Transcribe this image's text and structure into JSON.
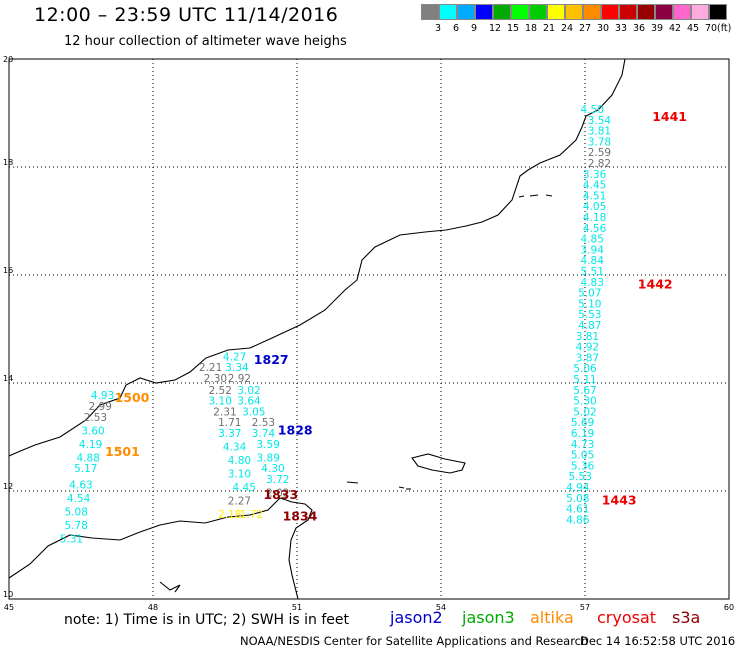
{
  "header": {
    "title": "12:00 – 23:59 UTC 11/14/2016",
    "subtitle": "12 hour collection of altimeter wave heighs"
  },
  "color_scale": {
    "unit": "(ft)",
    "swatches": [
      "#808080",
      "#00ffff",
      "#00aaff",
      "#0000ff",
      "#00aa00",
      "#00ff00",
      "#00cc00",
      "#ffff00",
      "#ffc000",
      "#ff8c00",
      "#ff0000",
      "#cc0000",
      "#990000",
      "#8b0040",
      "#ff66cc",
      "#ffaadd",
      "#000000"
    ],
    "labels": [
      "3",
      "6",
      "9",
      "12",
      "15",
      "18",
      "21",
      "24",
      "27",
      "30",
      "33",
      "36",
      "39",
      "42",
      "45",
      "70"
    ]
  },
  "axes": {
    "lon_labels": [
      "45",
      "48",
      "51",
      "54",
      "57",
      "60"
    ],
    "lat_labels": [
      "20",
      "18",
      "16",
      "14",
      "12",
      "10"
    ],
    "lon_range": [
      45,
      60
    ],
    "lat_range": [
      10,
      20
    ],
    "grid": true
  },
  "colors": {
    "cyan": "#00e8e8",
    "gray": "#707070",
    "yellow": "#ffee00",
    "blue": "#0000cc",
    "green": "#00aa00",
    "orange": "#ff8c00",
    "red": "#ee0000",
    "darkred": "#8b0000"
  },
  "tracks": [
    {
      "color": "cyan",
      "points": [
        [
          57.15,
          19.0,
          "4.50"
        ],
        [
          57.3,
          18.8,
          "3.54"
        ],
        [
          57.3,
          18.6,
          "3.81"
        ],
        [
          57.3,
          18.4,
          "3.78"
        ]
      ]
    },
    {
      "color": "gray",
      "points": [
        [
          57.3,
          18.2,
          "2.59"
        ],
        [
          57.3,
          18.0,
          "2.82"
        ]
      ]
    },
    {
      "color": "cyan",
      "points": [
        [
          57.2,
          17.8,
          "3.36"
        ],
        [
          57.2,
          17.6,
          "4.45"
        ],
        [
          57.2,
          17.4,
          "4.51"
        ],
        [
          57.2,
          17.2,
          "4.05"
        ],
        [
          57.2,
          17.0,
          "4.18"
        ],
        [
          57.2,
          16.8,
          "4.56"
        ],
        [
          57.15,
          16.6,
          "4.85"
        ],
        [
          57.15,
          16.4,
          "3.94"
        ],
        [
          57.15,
          16.2,
          "4.84"
        ],
        [
          57.15,
          16.0,
          "5.51"
        ],
        [
          57.15,
          15.8,
          "4.83"
        ],
        [
          57.1,
          15.6,
          "5.07"
        ],
        [
          57.1,
          15.4,
          "5.10"
        ],
        [
          57.1,
          15.2,
          "5.53"
        ],
        [
          57.1,
          15.0,
          "4.87"
        ],
        [
          57.05,
          14.8,
          "3.81"
        ],
        [
          57.05,
          14.6,
          "4.92"
        ],
        [
          57.05,
          14.4,
          "3.87"
        ],
        [
          57.0,
          14.2,
          "5.06"
        ],
        [
          57.0,
          14.0,
          "5.11"
        ],
        [
          57.0,
          13.8,
          "5.67"
        ],
        [
          57.0,
          13.6,
          "5.30"
        ],
        [
          57.0,
          13.4,
          "5.02"
        ],
        [
          56.95,
          13.2,
          "5.69"
        ],
        [
          56.95,
          13.0,
          "6.19"
        ],
        [
          56.95,
          12.8,
          "4.73"
        ],
        [
          56.95,
          12.6,
          "5.05"
        ],
        [
          56.95,
          12.4,
          "5.36"
        ],
        [
          56.9,
          12.2,
          "5.53"
        ],
        [
          56.85,
          12.0,
          "4.94"
        ],
        [
          56.85,
          11.8,
          "5.08"
        ],
        [
          56.85,
          11.6,
          "4.61"
        ],
        [
          56.85,
          11.4,
          "4.86"
        ]
      ]
    },
    {
      "color": "cyan",
      "points": [
        [
          46.95,
          13.7,
          "4.93"
        ]
      ]
    },
    {
      "color": "gray",
      "points": [
        [
          46.9,
          13.5,
          "2.99"
        ],
        [
          46.8,
          13.3,
          "2.53"
        ]
      ]
    },
    {
      "color": "cyan",
      "points": [
        [
          46.75,
          13.05,
          "3.60"
        ],
        [
          46.7,
          12.8,
          "4.19"
        ],
        [
          46.65,
          12.55,
          "4.88"
        ],
        [
          46.6,
          12.35,
          "5.17"
        ],
        [
          46.5,
          12.05,
          "4.63"
        ],
        [
          46.45,
          11.8,
          "4.54"
        ],
        [
          46.4,
          11.55,
          "5.08"
        ],
        [
          46.4,
          11.3,
          "5.78"
        ],
        [
          46.3,
          11.05,
          "5.31"
        ]
      ]
    },
    {
      "color": "cyan",
      "points": [
        [
          49.7,
          14.42,
          "4.27"
        ],
        [
          49.75,
          14.22,
          "3.34"
        ]
      ]
    },
    {
      "color": "gray",
      "points": [
        [
          49.2,
          14.22,
          "2.21"
        ],
        [
          49.3,
          14.02,
          "2.30"
        ],
        [
          49.8,
          14.02,
          "2.92"
        ],
        [
          49.4,
          13.8,
          "2.52"
        ]
      ]
    },
    {
      "color": "cyan",
      "points": [
        [
          50.0,
          13.8,
          "3.02"
        ],
        [
          49.4,
          13.6,
          "3.10"
        ],
        [
          50.0,
          13.6,
          "3.64"
        ],
        [
          50.1,
          13.4,
          "3.05"
        ]
      ]
    },
    {
      "color": "gray",
      "points": [
        [
          49.5,
          13.4,
          "2.31"
        ],
        [
          50.3,
          13.2,
          "2.53"
        ],
        [
          49.6,
          13.2,
          "1.71"
        ]
      ]
    },
    {
      "color": "cyan",
      "points": [
        [
          50.3,
          13.0,
          "3.74"
        ],
        [
          49.6,
          13.0,
          "3.37"
        ],
        [
          50.4,
          12.8,
          "3.59"
        ],
        [
          49.7,
          12.75,
          "4.34"
        ],
        [
          50.4,
          12.55,
          "3.89"
        ],
        [
          49.8,
          12.5,
          "4.80"
        ],
        [
          50.5,
          12.35,
          "4.30"
        ],
        [
          50.6,
          12.15,
          "3.72"
        ],
        [
          49.8,
          12.25,
          "3.10"
        ],
        [
          49.9,
          12.0,
          "4.45"
        ]
      ]
    },
    {
      "color": "gray",
      "points": [
        [
          49.8,
          11.75,
          "2.27"
        ]
      ]
    },
    {
      "color": "yellow",
      "points": [
        [
          49.6,
          11.5,
          "2.18"
        ],
        [
          50.05,
          11.5,
          "1.72"
        ]
      ]
    },
    {
      "color": "gray",
      "points": [
        [
          50.6,
          11.9,
          "2.02"
        ]
      ]
    }
  ],
  "time_labels": [
    {
      "lon": 58.4,
      "lat": 18.85,
      "text": "1441",
      "color": "red"
    },
    {
      "lon": 58.1,
      "lat": 15.75,
      "text": "1442",
      "color": "red"
    },
    {
      "lon": 57.35,
      "lat": 11.75,
      "text": "1443",
      "color": "red"
    },
    {
      "lon": 50.1,
      "lat": 14.35,
      "text": "1827",
      "color": "blue"
    },
    {
      "lon": 50.6,
      "lat": 13.05,
      "text": "1828",
      "color": "blue"
    },
    {
      "lon": 47.2,
      "lat": 13.65,
      "text": "1500",
      "color": "orange"
    },
    {
      "lon": 47.0,
      "lat": 12.65,
      "text": "1501",
      "color": "orange"
    },
    {
      "lon": 50.3,
      "lat": 11.85,
      "text": "1833",
      "color": "darkred"
    },
    {
      "lon": 50.7,
      "lat": 11.45,
      "text": "1834",
      "color": "darkred"
    }
  ],
  "footer": {
    "note": "note: 1) Time is in UTC; 2) SWH is in feet",
    "legend": [
      {
        "text": "jason2",
        "color": "#0000cc"
      },
      {
        "text": "jason3",
        "color": "#00aa00"
      },
      {
        "text": "altika",
        "color": "#ff8c00"
      },
      {
        "text": "cryosat",
        "color": "#ee0000"
      },
      {
        "text": "s3a",
        "color": "#8b0000"
      }
    ],
    "credit": "NOAA/NESDIS Center for Satellite Applications and Research",
    "timestamp": "Dec 14 16:52:58 UTC 2016"
  }
}
